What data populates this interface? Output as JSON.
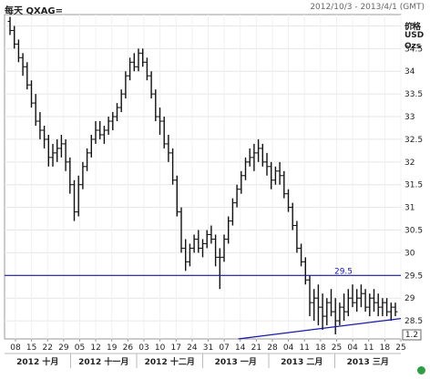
{
  "header": {
    "title": "每天 QXAG=",
    "date_range": "2012/10/3 - 2013/4/1 (GMT)"
  },
  "units": [
    "价格",
    "USD",
    "Ozs"
  ],
  "chart_data": {
    "type": "bar",
    "subtype": "ohlc",
    "title": "每天 QXAG=",
    "ylim": [
      28.1,
      35.25
    ],
    "yticks": [
      28.5,
      29,
      29.5,
      30,
      30.5,
      31,
      31.5,
      32,
      32.5,
      33,
      33.5,
      34,
      34.5,
      35
    ],
    "ytick_labels": [
      "28.5",
      "29",
      "29.5",
      "30",
      "30.5",
      "31",
      "31.5",
      "32",
      "32.5",
      "33",
      "33.5",
      "34",
      "34.5",
      "35"
    ],
    "current_value_label": "1.2",
    "xtick_labels": [
      "08",
      "15",
      "22",
      "29",
      "05",
      "12",
      "19",
      "26",
      "03",
      "10",
      "17",
      "24",
      "31",
      "07",
      "14",
      "21",
      "28",
      "04",
      "11",
      "18",
      "25",
      "04",
      "11",
      "18",
      "25"
    ],
    "month_labels": [
      "2012 十月",
      "2012 十一月",
      "2012 十二月",
      "2013 一月",
      "2013 二月",
      "2013 三月"
    ],
    "grid": true,
    "horizontal_line": {
      "value": 29.5,
      "label": "29.5",
      "color": "#1a1aa8"
    },
    "trend_line": {
      "start_index": 28,
      "start_value": 27.8,
      "end_index": 119,
      "end_value": 28.55,
      "color": "#1a1aa8"
    },
    "bars": [
      [
        35.1,
        35.2,
        34.8,
        34.9
      ],
      [
        34.9,
        35.0,
        34.5,
        34.6
      ],
      [
        34.6,
        34.7,
        34.2,
        34.3
      ],
      [
        34.3,
        34.4,
        33.9,
        34.1
      ],
      [
        34.1,
        34.2,
        33.6,
        33.7
      ],
      [
        33.7,
        33.8,
        33.2,
        33.3
      ],
      [
        33.3,
        33.5,
        32.8,
        32.9
      ],
      [
        32.9,
        33.1,
        32.5,
        32.7
      ],
      [
        32.7,
        32.8,
        32.3,
        32.5
      ],
      [
        32.5,
        32.6,
        31.9,
        32.1
      ],
      [
        32.1,
        32.4,
        31.9,
        32.2
      ],
      [
        32.2,
        32.5,
        32.0,
        32.3
      ],
      [
        32.3,
        32.6,
        32.1,
        32.4
      ],
      [
        32.4,
        32.5,
        31.8,
        32.0
      ],
      [
        32.0,
        32.1,
        31.3,
        31.5
      ],
      [
        31.5,
        31.6,
        30.7,
        30.9
      ],
      [
        30.9,
        31.7,
        30.8,
        31.5
      ],
      [
        31.5,
        32.0,
        31.4,
        31.9
      ],
      [
        31.9,
        32.3,
        31.8,
        32.2
      ],
      [
        32.2,
        32.6,
        32.1,
        32.5
      ],
      [
        32.5,
        32.9,
        32.4,
        32.7
      ],
      [
        32.7,
        32.9,
        32.5,
        32.6
      ],
      [
        32.6,
        32.8,
        32.4,
        32.7
      ],
      [
        32.7,
        33.0,
        32.6,
        32.9
      ],
      [
        32.9,
        33.1,
        32.7,
        33.0
      ],
      [
        33.0,
        33.3,
        32.9,
        33.2
      ],
      [
        33.2,
        33.6,
        33.1,
        33.5
      ],
      [
        33.5,
        34.0,
        33.4,
        33.9
      ],
      [
        33.9,
        34.3,
        33.8,
        34.2
      ],
      [
        34.2,
        34.4,
        34.0,
        34.1
      ],
      [
        34.1,
        34.5,
        34.0,
        34.4
      ],
      [
        34.4,
        34.5,
        34.1,
        34.2
      ],
      [
        34.2,
        34.3,
        33.8,
        33.9
      ],
      [
        33.9,
        34.0,
        33.4,
        33.5
      ],
      [
        33.5,
        33.6,
        32.9,
        33.0
      ],
      [
        33.0,
        33.2,
        32.6,
        32.9
      ],
      [
        32.9,
        33.0,
        32.3,
        32.4
      ],
      [
        32.4,
        32.6,
        32.0,
        32.2
      ],
      [
        32.2,
        32.3,
        31.5,
        31.6
      ],
      [
        31.6,
        31.7,
        30.8,
        30.9
      ],
      [
        30.9,
        31.0,
        30.0,
        30.1
      ],
      [
        30.1,
        30.3,
        29.6,
        29.8
      ],
      [
        29.8,
        30.2,
        29.7,
        30.1
      ],
      [
        30.1,
        30.4,
        30.0,
        30.3
      ],
      [
        30.3,
        30.5,
        30.0,
        30.1
      ],
      [
        30.1,
        30.3,
        29.9,
        30.2
      ],
      [
        30.2,
        30.5,
        30.1,
        30.4
      ],
      [
        30.4,
        30.6,
        30.2,
        30.3
      ],
      [
        30.3,
        30.4,
        29.7,
        29.9
      ],
      [
        29.9,
        30.1,
        29.2,
        29.9
      ],
      [
        29.9,
        30.4,
        29.8,
        30.3
      ],
      [
        30.3,
        30.8,
        30.2,
        30.7
      ],
      [
        30.7,
        31.2,
        30.6,
        31.1
      ],
      [
        31.1,
        31.5,
        31.0,
        31.4
      ],
      [
        31.4,
        31.8,
        31.3,
        31.7
      ],
      [
        31.7,
        32.1,
        31.6,
        32.0
      ],
      [
        32.0,
        32.3,
        31.9,
        32.1
      ],
      [
        32.1,
        32.4,
        31.8,
        32.2
      ],
      [
        32.2,
        32.5,
        32.0,
        32.3
      ],
      [
        32.3,
        32.4,
        31.9,
        32.0
      ],
      [
        32.0,
        32.2,
        31.7,
        31.9
      ],
      [
        31.9,
        32.0,
        31.4,
        31.6
      ],
      [
        31.6,
        31.9,
        31.5,
        31.8
      ],
      [
        31.8,
        32.0,
        31.5,
        31.7
      ],
      [
        31.7,
        31.8,
        31.2,
        31.3
      ],
      [
        31.3,
        31.4,
        30.9,
        31.0
      ],
      [
        31.0,
        31.1,
        30.5,
        30.6
      ],
      [
        30.6,
        30.7,
        30.0,
        30.1
      ],
      [
        30.1,
        30.2,
        29.7,
        29.8
      ],
      [
        29.8,
        29.9,
        29.3,
        29.4
      ],
      [
        29.4,
        29.5,
        28.6,
        28.9
      ],
      [
        28.9,
        29.2,
        28.5,
        29.0
      ],
      [
        29.0,
        29.3,
        28.4,
        28.8
      ],
      [
        28.8,
        29.1,
        28.3,
        28.6
      ],
      [
        28.6,
        29.0,
        28.4,
        28.9
      ],
      [
        28.9,
        29.2,
        28.6,
        28.7
      ],
      [
        28.7,
        29.0,
        28.2,
        28.5
      ],
      [
        28.5,
        28.9,
        28.4,
        28.8
      ],
      [
        28.8,
        29.1,
        28.5,
        28.7
      ],
      [
        28.7,
        29.2,
        28.6,
        29.0
      ],
      [
        29.0,
        29.3,
        28.8,
        28.9
      ],
      [
        28.9,
        29.2,
        28.7,
        29.0
      ],
      [
        29.0,
        29.3,
        28.8,
        29.1
      ],
      [
        29.1,
        29.2,
        28.7,
        28.8
      ],
      [
        28.8,
        29.1,
        28.6,
        29.0
      ],
      [
        29.0,
        29.2,
        28.7,
        28.9
      ],
      [
        28.9,
        29.1,
        28.6,
        28.8
      ],
      [
        28.8,
        29.0,
        28.6,
        28.9
      ],
      [
        28.9,
        29.0,
        28.6,
        28.7
      ],
      [
        28.7,
        28.9,
        28.5,
        28.8
      ],
      [
        28.8,
        28.9,
        28.6,
        28.7
      ]
    ]
  }
}
